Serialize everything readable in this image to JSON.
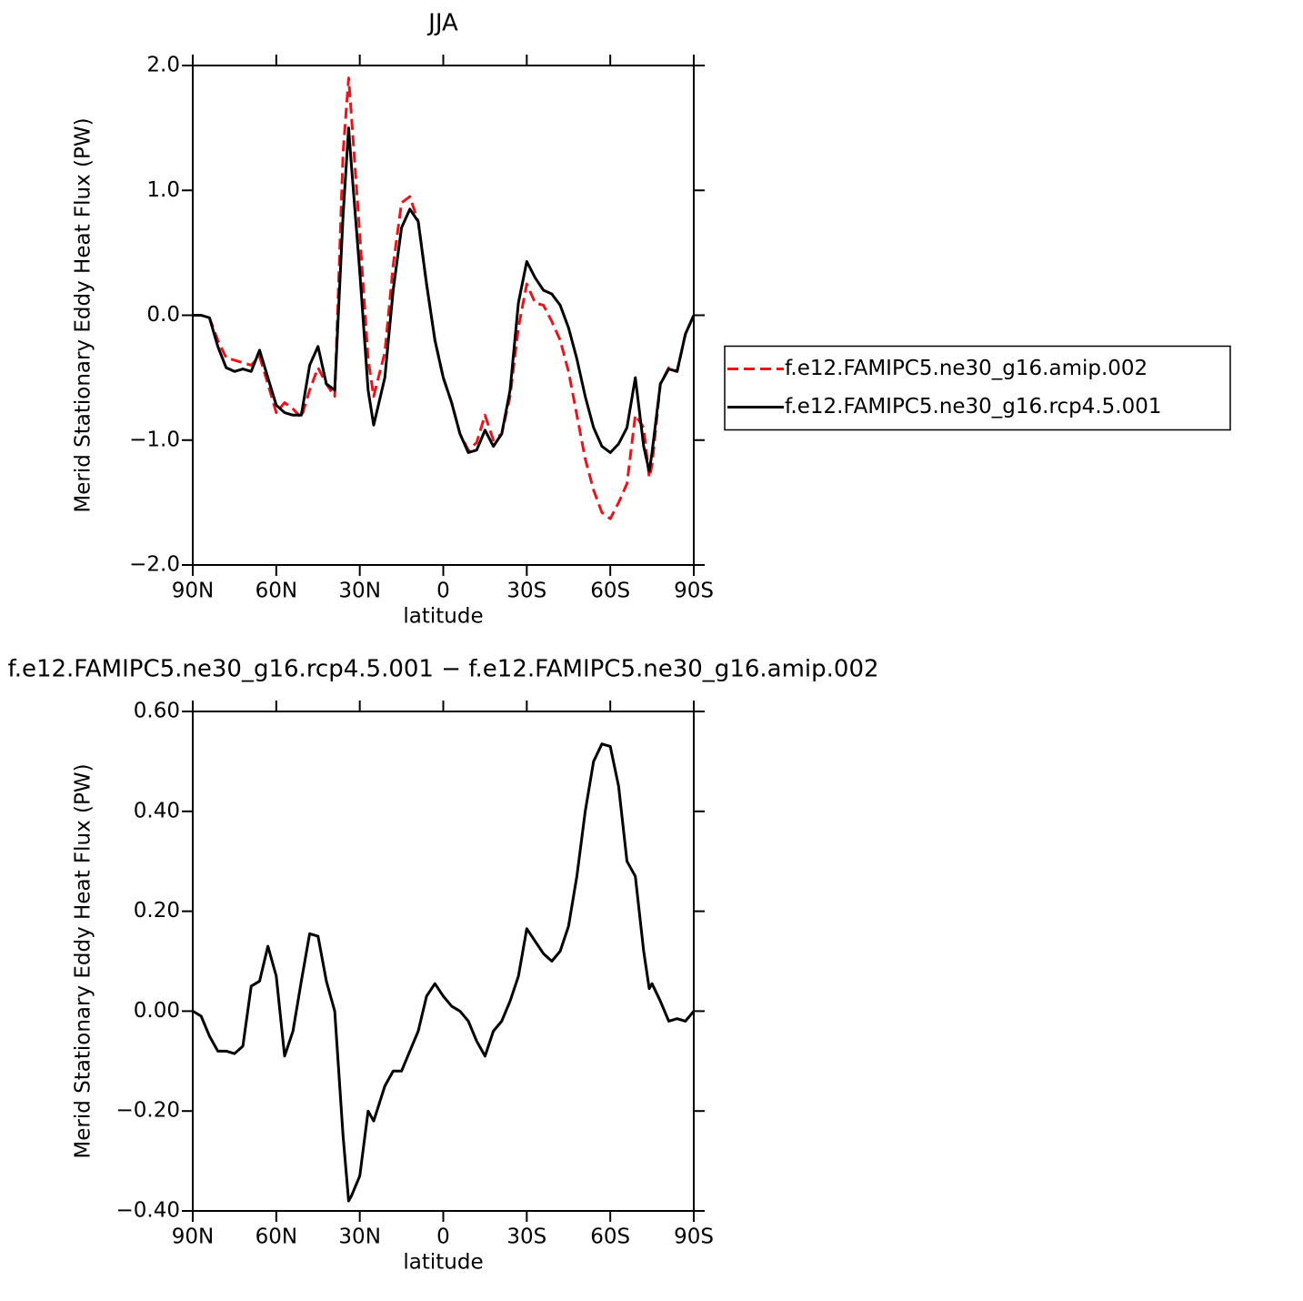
{
  "chart_data": [
    {
      "type": "line",
      "title": "JJA",
      "x_label": "latitude",
      "y_label": "Merid Stationary Eddy Heat Flux (PW)",
      "x": [
        90,
        87,
        84,
        81,
        78,
        75,
        72,
        69,
        66,
        63,
        60,
        57,
        54,
        51,
        48,
        45,
        42,
        39,
        36,
        34,
        33,
        30,
        27,
        25,
        21,
        18,
        15,
        12,
        9,
        6,
        3,
        0,
        -3,
        -6,
        -9,
        -12,
        -15,
        -18,
        -21,
        -24,
        -27,
        -30,
        -33,
        -36,
        -39,
        -42,
        -45,
        -48,
        -51,
        -54,
        -57,
        -60,
        -63,
        -66,
        -69,
        -72,
        -74,
        -75,
        -78,
        -81,
        -84,
        -87,
        -90
      ],
      "xlim": [
        90,
        -90
      ],
      "xticks": [
        {
          "value": 90,
          "label": "90N"
        },
        {
          "value": 60,
          "label": "60N"
        },
        {
          "value": 30,
          "label": "30N"
        },
        0,
        {
          "value": -30,
          "label": "30S"
        },
        {
          "value": -60,
          "label": "60S"
        },
        {
          "value": -90,
          "label": "90S"
        }
      ],
      "ylim": [
        -2,
        2
      ],
      "yticks": [
        {
          "value": 2,
          "label": "2.0"
        },
        {
          "value": 1,
          "label": "1.0"
        },
        {
          "value": 0,
          "label": "0.0"
        },
        {
          "value": -1,
          "label": "−1.0"
        },
        {
          "value": -2,
          "label": "−2.0"
        }
      ],
      "legend": "right",
      "series": [
        {
          "name": "f.e12.FAMIPC5.ne30_g16.amip.002",
          "color": "#e8141b",
          "linestyle": "dashed",
          "values": [
            0,
            0,
            -0.02,
            -0.2,
            -0.34,
            -0.36,
            -0.38,
            -0.4,
            -0.33,
            -0.55,
            -0.78,
            -0.7,
            -0.75,
            -0.82,
            -0.6,
            -0.42,
            -0.55,
            -0.65,
            1.3,
            1.9,
            1.6,
            0.65,
            -0.35,
            -0.65,
            -0.3,
            0.4,
            0.9,
            0.95,
            0.75,
            0.25,
            -0.2,
            -0.5,
            -0.7,
            -0.95,
            -1.08,
            -1.02,
            -0.8,
            -1.0,
            -0.95,
            -0.65,
            -0.1,
            0.25,
            0.1,
            0.08,
            -0.05,
            -0.2,
            -0.45,
            -0.8,
            -1.15,
            -1.4,
            -1.58,
            -1.63,
            -1.5,
            -1.35,
            -0.8,
            -0.9,
            -1.3,
            -1.2,
            -0.55,
            -0.42,
            -0.45,
            -0.15,
            0
          ]
        },
        {
          "name": "f.e12.FAMIPC5.ne30_g16.rcp4.5.001",
          "color": "#000000",
          "linestyle": "solid",
          "values": [
            0,
            0,
            -0.02,
            -0.25,
            -0.42,
            -0.45,
            -0.43,
            -0.45,
            -0.28,
            -0.5,
            -0.72,
            -0.78,
            -0.8,
            -0.8,
            -0.4,
            -0.25,
            -0.55,
            -0.6,
            0.8,
            1.5,
            1.2,
            0.35,
            -0.6,
            -0.88,
            -0.5,
            0.2,
            0.7,
            0.85,
            0.75,
            0.25,
            -0.2,
            -0.5,
            -0.7,
            -0.95,
            -1.1,
            -1.08,
            -0.92,
            -1.05,
            -0.95,
            -0.6,
            0.1,
            0.43,
            0.3,
            0.2,
            0.17,
            0.08,
            -0.1,
            -0.35,
            -0.65,
            -0.9,
            -1.05,
            -1.1,
            -1.03,
            -0.9,
            -0.5,
            -1.05,
            -1.25,
            -1.1,
            -0.55,
            -0.43,
            -0.45,
            -0.15,
            0
          ]
        }
      ]
    },
    {
      "type": "line",
      "title": "f.e12.FAMIPC5.ne30_g16.rcp4.5.001 − f.e12.FAMIPC5.ne30_g16.amip.002",
      "x_label": "latitude",
      "y_label": "Merid Stationary Eddy Heat Flux (PW)",
      "x": [
        90,
        87,
        84,
        81,
        78,
        75,
        72,
        69,
        66,
        63,
        60,
        57,
        54,
        51,
        48,
        45,
        42,
        39,
        36,
        34,
        33,
        30,
        27,
        25,
        21,
        18,
        15,
        12,
        9,
        6,
        3,
        0,
        -3,
        -6,
        -9,
        -12,
        -15,
        -18,
        -21,
        -24,
        -27,
        -30,
        -33,
        -36,
        -39,
        -42,
        -45,
        -48,
        -51,
        -54,
        -57,
        -60,
        -63,
        -66,
        -69,
        -72,
        -74,
        -75,
        -78,
        -81,
        -84,
        -87,
        -90
      ],
      "xlim": [
        90,
        -90
      ],
      "xticks": [
        {
          "value": 90,
          "label": "90N"
        },
        {
          "value": 60,
          "label": "60N"
        },
        {
          "value": 30,
          "label": "30N"
        },
        0,
        {
          "value": -30,
          "label": "30S"
        },
        {
          "value": -60,
          "label": "60S"
        },
        {
          "value": -90,
          "label": "90S"
        }
      ],
      "ylim": [
        -0.4,
        0.6
      ],
      "yticks": [
        {
          "value": 0.6,
          "label": "0.60"
        },
        {
          "value": 0.4,
          "label": "0.40"
        },
        {
          "value": 0.2,
          "label": "0.20"
        },
        {
          "value": 0,
          "label": "0.00"
        },
        {
          "value": -0.2,
          "label": "−0.20"
        },
        {
          "value": -0.4,
          "label": "−0.40"
        }
      ],
      "series": [
        {
          "color": "#000000",
          "linestyle": "solid",
          "values": [
            0,
            -0.01,
            -0.05,
            -0.08,
            -0.08,
            -0.085,
            -0.07,
            0.05,
            0.06,
            0.13,
            0.07,
            -0.09,
            -0.04,
            0.06,
            0.155,
            0.15,
            0.06,
            0.0,
            -0.25,
            -0.38,
            -0.37,
            -0.33,
            -0.2,
            -0.22,
            -0.15,
            -0.12,
            -0.12,
            -0.08,
            -0.04,
            0.03,
            0.055,
            0.03,
            0.01,
            0.0,
            -0.02,
            -0.06,
            -0.09,
            -0.04,
            -0.02,
            0.02,
            0.07,
            0.165,
            0.14,
            0.115,
            0.1,
            0.12,
            0.17,
            0.27,
            0.4,
            0.5,
            0.535,
            0.53,
            0.45,
            0.3,
            0.27,
            0.12,
            0.045,
            0.055,
            0.02,
            -0.02,
            -0.015,
            -0.02,
            0
          ]
        }
      ]
    }
  ]
}
